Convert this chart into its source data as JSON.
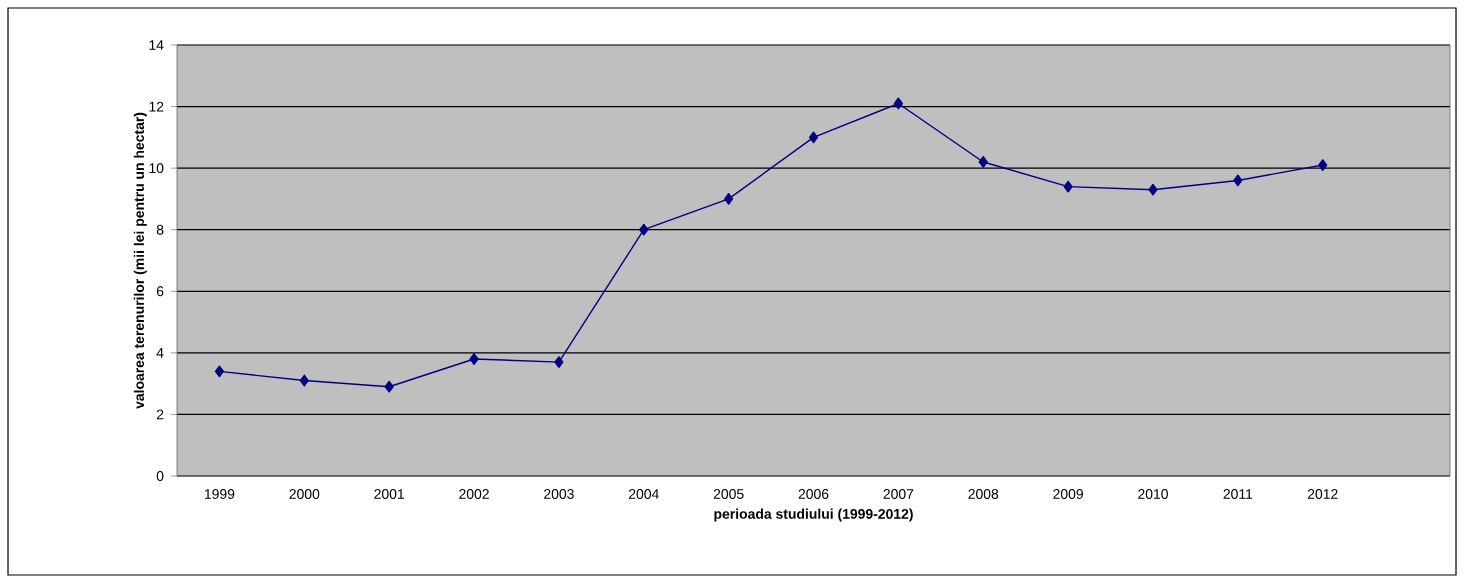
{
  "chart_data": {
    "type": "line",
    "xlabel": "perioada studiului (1999-2012)",
    "ylabel": "valoarea terenurilor (mii lei pentru un hectar)",
    "categories": [
      "1999",
      "2000",
      "2001",
      "2002",
      "2003",
      "2004",
      "2005",
      "2006",
      "2007",
      "2008",
      "2009",
      "2010",
      "2011",
      "2012",
      null
    ],
    "values": [
      3.4,
      3.1,
      2.9,
      3.8,
      3.7,
      8.0,
      9.0,
      11.0,
      12.1,
      10.2,
      9.4,
      9.3,
      9.6,
      10.1,
      null
    ],
    "color": "#000080",
    "ylim": [
      0,
      14
    ],
    "yticks": [
      0,
      2,
      4,
      6,
      8,
      10,
      12,
      14
    ],
    "grid": "y",
    "marker": "diamond"
  }
}
